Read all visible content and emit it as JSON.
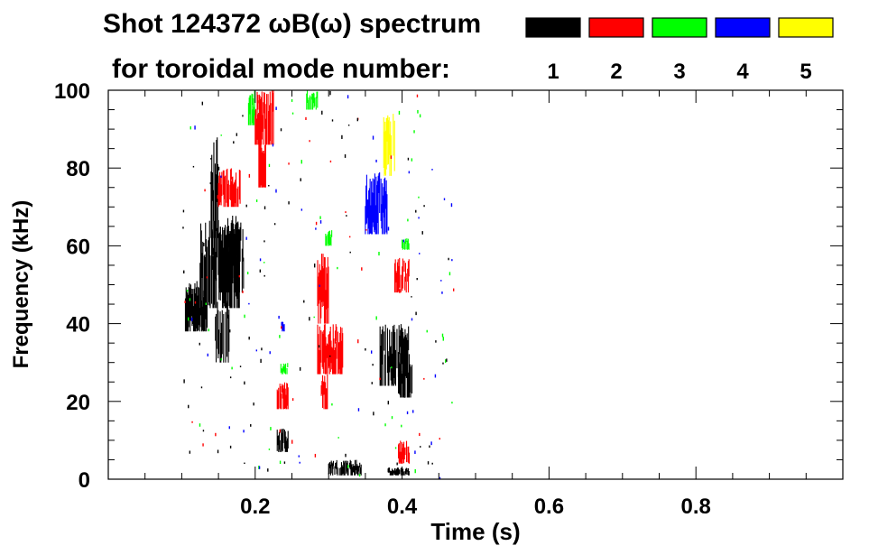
{
  "chart_data": {
    "type": "heatmap",
    "title_line1": "Shot 124372 ωB(ω) spectrum",
    "title_line2": "for toroidal mode number:",
    "xlabel": "Time (s)",
    "ylabel": "Frequency (kHz)",
    "xlim": [
      0.0,
      1.0
    ],
    "ylim": [
      0,
      100
    ],
    "xticks": [
      0.2,
      0.4,
      0.6,
      0.8
    ],
    "xtick_labels": [
      "0.2",
      "0.4",
      "0.6",
      "0.8"
    ],
    "yticks": [
      0,
      20,
      40,
      60,
      80,
      100
    ],
    "ytick_labels": [
      "0",
      "20",
      "40",
      "60",
      "80",
      "100"
    ],
    "legend": [
      {
        "label": "1",
        "color": "#000000"
      },
      {
        "label": "2",
        "color": "#ff0000"
      },
      {
        "label": "3",
        "color": "#00ff00"
      },
      {
        "label": "4",
        "color": "#0000ff"
      },
      {
        "label": "5",
        "color": "#ffff00"
      }
    ],
    "series": [
      {
        "mode": 1,
        "name": "n=1",
        "color": "#000000",
        "bands": [
          {
            "t0": 0.105,
            "t1": 0.135,
            "f0": 38,
            "f1": 51
          },
          {
            "t0": 0.125,
            "t1": 0.18,
            "f0": 44,
            "f1": 68
          },
          {
            "t0": 0.15,
            "t1": 0.185,
            "f0": 48,
            "f1": 66
          },
          {
            "t0": 0.145,
            "t1": 0.165,
            "f0": 30,
            "f1": 46
          },
          {
            "t0": 0.14,
            "t1": 0.15,
            "f0": 62,
            "f1": 88
          },
          {
            "t0": 0.23,
            "t1": 0.245,
            "f0": 7,
            "f1": 13
          },
          {
            "t0": 0.37,
            "t1": 0.41,
            "f0": 24,
            "f1": 40
          },
          {
            "t0": 0.395,
            "t1": 0.415,
            "f0": 21,
            "f1": 31
          },
          {
            "t0": 0.3,
            "t1": 0.345,
            "f0": 1,
            "f1": 5
          },
          {
            "t0": 0.38,
            "t1": 0.41,
            "f0": 1,
            "f1": 3
          }
        ]
      },
      {
        "mode": 2,
        "name": "n=2",
        "color": "#ff0000",
        "bands": [
          {
            "t0": 0.15,
            "t1": 0.18,
            "f0": 70,
            "f1": 80
          },
          {
            "t0": 0.2,
            "t1": 0.225,
            "f0": 86,
            "f1": 100
          },
          {
            "t0": 0.205,
            "t1": 0.215,
            "f0": 75,
            "f1": 88
          },
          {
            "t0": 0.23,
            "t1": 0.245,
            "f0": 18,
            "f1": 25
          },
          {
            "t0": 0.285,
            "t1": 0.32,
            "f0": 27,
            "f1": 40
          },
          {
            "t0": 0.285,
            "t1": 0.3,
            "f0": 40,
            "f1": 58
          },
          {
            "t0": 0.29,
            "t1": 0.3,
            "f0": 18,
            "f1": 27
          },
          {
            "t0": 0.39,
            "t1": 0.41,
            "f0": 48,
            "f1": 57
          },
          {
            "t0": 0.395,
            "t1": 0.41,
            "f0": 4,
            "f1": 10
          }
        ]
      },
      {
        "mode": 3,
        "name": "n=3",
        "color": "#00ff00",
        "bands": [
          {
            "t0": 0.19,
            "t1": 0.2,
            "f0": 91,
            "f1": 100
          },
          {
            "t0": 0.27,
            "t1": 0.285,
            "f0": 95,
            "f1": 100
          },
          {
            "t0": 0.295,
            "t1": 0.305,
            "f0": 60,
            "f1": 64
          },
          {
            "t0": 0.235,
            "t1": 0.245,
            "f0": 27,
            "f1": 30
          },
          {
            "t0": 0.4,
            "t1": 0.41,
            "f0": 59,
            "f1": 62
          }
        ]
      },
      {
        "mode": 4,
        "name": "n=4",
        "color": "#0000ff",
        "bands": [
          {
            "t0": 0.35,
            "t1": 0.38,
            "f0": 63,
            "f1": 79
          },
          {
            "t0": 0.235,
            "t1": 0.24,
            "f0": 38,
            "f1": 41
          }
        ]
      },
      {
        "mode": 5,
        "name": "n=5",
        "color": "#ffff00",
        "bands": [
          {
            "t0": 0.375,
            "t1": 0.39,
            "f0": 78,
            "f1": 94
          }
        ]
      }
    ]
  }
}
